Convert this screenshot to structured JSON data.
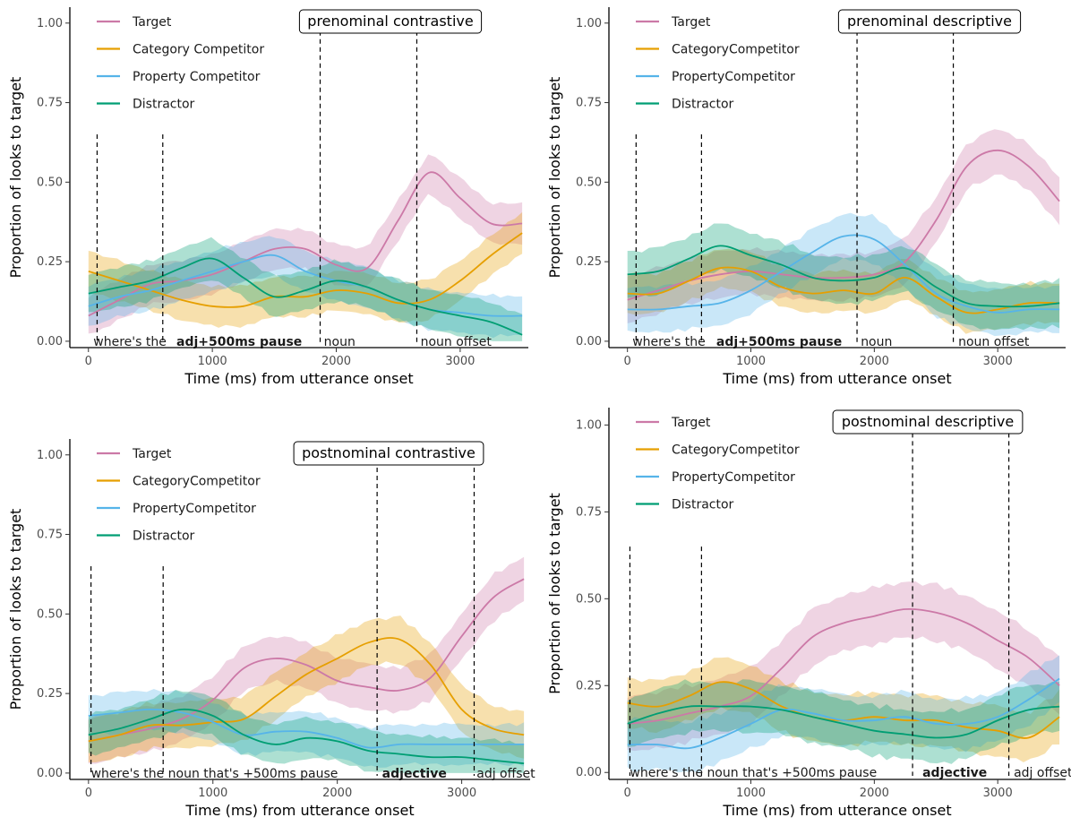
{
  "chart_data": [
    {
      "type": "line",
      "title": "prenominal contrastive",
      "xlabel": "Time (ms) from utterance onset",
      "ylabel": "Proportion of looks to target",
      "xlim": [
        -150,
        3550
      ],
      "ylim": [
        -0.02,
        1.05
      ],
      "xticks": [
        0,
        1000,
        2000,
        3000
      ],
      "yticks": [
        0.0,
        0.25,
        0.5,
        0.75,
        1.0
      ],
      "ytick_labels": [
        "0.00",
        "0.25",
        "0.50",
        "0.75",
        "1.00"
      ],
      "legend_position": "top-left",
      "vlines": [
        {
          "x": 70,
          "top": 0.65
        },
        {
          "x": 600,
          "top": 0.65
        },
        {
          "x": 1870,
          "top": 1.0
        },
        {
          "x": 2650,
          "top": 1.0
        }
      ],
      "segment_labels": [
        {
          "text": "where's the",
          "x": 40,
          "bold": false
        },
        {
          "text": "adj+500ms pause",
          "x": 710,
          "bold": true
        },
        {
          "text": "noun",
          "x": 1900,
          "bold": false
        },
        {
          "text": "noun offset",
          "x": 2680,
          "bold": false
        }
      ],
      "x": [
        0,
        250,
        500,
        750,
        1000,
        1250,
        1500,
        1750,
        2000,
        2250,
        2500,
        2750,
        3000,
        3250,
        3500
      ],
      "series": [
        {
          "name": "Target",
          "color": "#cc79a7",
          "values": [
            0.08,
            0.13,
            0.18,
            0.19,
            0.21,
            0.25,
            0.29,
            0.29,
            0.24,
            0.23,
            0.38,
            0.53,
            0.45,
            0.37,
            0.37
          ],
          "band": 0.07
        },
        {
          "name": "Category Competitor",
          "color": "#e69f00",
          "values": [
            0.22,
            0.19,
            0.16,
            0.13,
            0.11,
            0.11,
            0.14,
            0.14,
            0.16,
            0.15,
            0.12,
            0.13,
            0.19,
            0.27,
            0.34
          ],
          "band": 0.07
        },
        {
          "name": "Property Competitor",
          "color": "#56b4e9",
          "values": [
            0.11,
            0.14,
            0.16,
            0.19,
            0.22,
            0.25,
            0.27,
            0.22,
            0.19,
            0.17,
            0.13,
            0.1,
            0.09,
            0.08,
            0.08
          ],
          "band": 0.07
        },
        {
          "name": "Distractor",
          "color": "#009e73",
          "values": [
            0.15,
            0.17,
            0.19,
            0.23,
            0.26,
            0.2,
            0.14,
            0.16,
            0.19,
            0.17,
            0.13,
            0.1,
            0.08,
            0.06,
            0.02
          ],
          "band": 0.07
        }
      ]
    },
    {
      "type": "line",
      "title": "prenominal descriptive",
      "xlabel": "Time (ms) from utterance onset",
      "ylabel": "Proportion of looks to target",
      "xlim": [
        -150,
        3550
      ],
      "ylim": [
        -0.02,
        1.05
      ],
      "xticks": [
        0,
        1000,
        2000,
        3000
      ],
      "yticks": [
        0.0,
        0.25,
        0.5,
        0.75,
        1.0
      ],
      "ytick_labels": [
        "0.00",
        "0.25",
        "0.50",
        "0.75",
        "1.00"
      ],
      "legend_position": "top-left",
      "vlines": [
        {
          "x": 70,
          "top": 0.65
        },
        {
          "x": 600,
          "top": 0.65
        },
        {
          "x": 1860,
          "top": 1.0
        },
        {
          "x": 2640,
          "top": 1.0
        }
      ],
      "segment_labels": [
        {
          "text": "where's the",
          "x": 40,
          "bold": false
        },
        {
          "text": "adj+500ms pause",
          "x": 720,
          "bold": true
        },
        {
          "text": "noun",
          "x": 1890,
          "bold": false
        },
        {
          "text": "noun offset",
          "x": 2680,
          "bold": false
        }
      ],
      "x": [
        0,
        250,
        500,
        750,
        1000,
        1250,
        1500,
        1750,
        2000,
        2250,
        2500,
        2750,
        3000,
        3250,
        3500
      ],
      "series": [
        {
          "name": "Target",
          "color": "#cc79a7",
          "values": [
            0.13,
            0.16,
            0.19,
            0.21,
            0.22,
            0.21,
            0.2,
            0.2,
            0.21,
            0.25,
            0.38,
            0.55,
            0.6,
            0.55,
            0.44
          ],
          "band": 0.08
        },
        {
          "name": "CategoryCompetitor",
          "color": "#e69f00",
          "values": [
            0.15,
            0.15,
            0.19,
            0.23,
            0.22,
            0.17,
            0.15,
            0.16,
            0.15,
            0.2,
            0.14,
            0.09,
            0.1,
            0.12,
            0.12
          ],
          "band": 0.07
        },
        {
          "name": "PropertyCompetitor",
          "color": "#56b4e9",
          "values": [
            0.1,
            0.1,
            0.11,
            0.12,
            0.16,
            0.22,
            0.28,
            0.33,
            0.32,
            0.24,
            0.15,
            0.11,
            0.09,
            0.1,
            0.1
          ],
          "band": 0.08
        },
        {
          "name": "Distractor",
          "color": "#009e73",
          "values": [
            0.21,
            0.22,
            0.26,
            0.3,
            0.27,
            0.24,
            0.2,
            0.19,
            0.2,
            0.23,
            0.17,
            0.12,
            0.11,
            0.11,
            0.12
          ],
          "band": 0.08
        }
      ]
    },
    {
      "type": "line",
      "title": "postnominal contrastive",
      "xlabel": "Time (ms) from utterance onset",
      "ylabel": "Proportion of looks to target",
      "xlim": [
        -150,
        3550
      ],
      "ylim": [
        -0.02,
        1.05
      ],
      "xticks": [
        0,
        1000,
        2000,
        3000
      ],
      "yticks": [
        0.0,
        0.25,
        0.5,
        0.75,
        1.0
      ],
      "ytick_labels": [
        "0.00",
        "0.25",
        "0.50",
        "0.75",
        "1.00"
      ],
      "legend_position": "top-left",
      "vlines": [
        {
          "x": 20,
          "top": 0.65
        },
        {
          "x": 600,
          "top": 0.65
        },
        {
          "x": 2320,
          "top": 0.96
        },
        {
          "x": 3100,
          "top": 0.96
        }
      ],
      "segment_labels": [
        {
          "text": "where's the noun that's +500ms pause",
          "x": 20,
          "bold": false
        },
        {
          "text": "adjective",
          "x": 2360,
          "bold": true
        },
        {
          "text": "adj offset",
          "x": 3120,
          "bold": false
        }
      ],
      "x": [
        0,
        250,
        500,
        750,
        1000,
        1250,
        1500,
        1750,
        2000,
        2250,
        2500,
        2750,
        3000,
        3250,
        3500
      ],
      "series": [
        {
          "name": "Target",
          "color": "#cc79a7",
          "values": [
            0.1,
            0.12,
            0.14,
            0.17,
            0.23,
            0.33,
            0.36,
            0.34,
            0.29,
            0.27,
            0.26,
            0.3,
            0.43,
            0.55,
            0.61
          ],
          "band": 0.08
        },
        {
          "name": "CategoryCompetitor",
          "color": "#e69f00",
          "values": [
            0.1,
            0.12,
            0.15,
            0.15,
            0.16,
            0.17,
            0.24,
            0.31,
            0.36,
            0.41,
            0.42,
            0.34,
            0.2,
            0.14,
            0.12
          ],
          "band": 0.08
        },
        {
          "name": "PropertyCompetitor",
          "color": "#56b4e9",
          "values": [
            0.18,
            0.19,
            0.2,
            0.19,
            0.16,
            0.12,
            0.13,
            0.13,
            0.11,
            0.08,
            0.09,
            0.09,
            0.09,
            0.09,
            0.09
          ],
          "band": 0.07
        },
        {
          "name": "Distractor",
          "color": "#009e73",
          "values": [
            0.12,
            0.14,
            0.17,
            0.2,
            0.18,
            0.12,
            0.09,
            0.11,
            0.1,
            0.07,
            0.06,
            0.05,
            0.05,
            0.04,
            0.03
          ],
          "band": 0.07
        }
      ]
    },
    {
      "type": "line",
      "title": "postnominal descriptive",
      "xlabel": "Time (ms) from utterance onset",
      "ylabel": "Proportion of looks to target",
      "xlim": [
        -150,
        3550
      ],
      "ylim": [
        -0.02,
        1.05
      ],
      "xticks": [
        0,
        1000,
        2000,
        3000
      ],
      "yticks": [
        0.0,
        0.25,
        0.5,
        0.75,
        1.0
      ],
      "ytick_labels": [
        "0.00",
        "0.25",
        "0.50",
        "0.75",
        "1.00"
      ],
      "legend_position": "top-left",
      "vlines": [
        {
          "x": 20,
          "top": 0.65
        },
        {
          "x": 600,
          "top": 0.65
        },
        {
          "x": 2310,
          "top": 1.0
        },
        {
          "x": 3090,
          "top": 1.0
        }
      ],
      "segment_labels": [
        {
          "text": "where's the noun that's +500ms pause",
          "x": 20,
          "bold": false
        },
        {
          "text": "adjective",
          "x": 2390,
          "bold": true
        },
        {
          "text": "adj offset",
          "x": 3130,
          "bold": false
        }
      ],
      "x": [
        0,
        250,
        500,
        750,
        1000,
        1250,
        1500,
        1750,
        2000,
        2250,
        2500,
        2750,
        3000,
        3250,
        3500
      ],
      "series": [
        {
          "name": "Target",
          "color": "#cc79a7",
          "values": [
            0.14,
            0.15,
            0.17,
            0.19,
            0.22,
            0.3,
            0.39,
            0.43,
            0.45,
            0.47,
            0.46,
            0.43,
            0.38,
            0.33,
            0.25
          ],
          "band": 0.09
        },
        {
          "name": "CategoryCompetitor",
          "color": "#e69f00",
          "values": [
            0.2,
            0.19,
            0.22,
            0.26,
            0.24,
            0.19,
            0.16,
            0.15,
            0.16,
            0.15,
            0.15,
            0.13,
            0.12,
            0.1,
            0.16
          ],
          "band": 0.08
        },
        {
          "name": "PropertyCompetitor",
          "color": "#56b4e9",
          "values": [
            0.08,
            0.08,
            0.07,
            0.1,
            0.14,
            0.18,
            0.17,
            0.15,
            0.15,
            0.16,
            0.14,
            0.14,
            0.16,
            0.21,
            0.27
          ],
          "band": 0.08
        },
        {
          "name": "Distractor",
          "color": "#009e73",
          "values": [
            0.14,
            0.17,
            0.19,
            0.19,
            0.19,
            0.18,
            0.16,
            0.14,
            0.12,
            0.11,
            0.1,
            0.11,
            0.15,
            0.18,
            0.19
          ],
          "band": 0.08
        }
      ]
    }
  ]
}
